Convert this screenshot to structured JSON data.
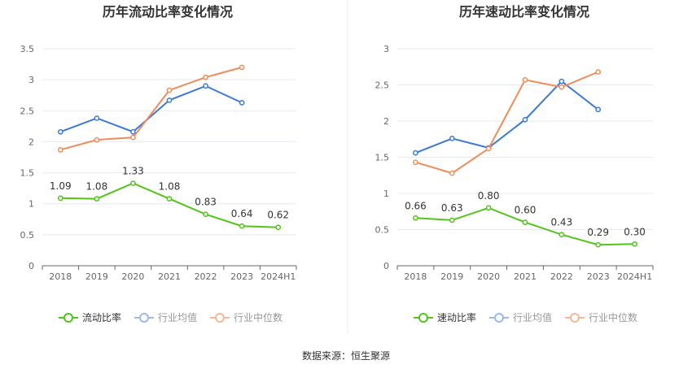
{
  "colors": {
    "primary": "#52c41a",
    "avg": "#3b78d8",
    "median": "#f08c5a",
    "avg_legend": "#9db8ea",
    "median_legend": "#f5b899",
    "grid": "#e6e9f0",
    "axis": "#666666"
  },
  "source": "数据来源：恒生聚源",
  "chart_data": [
    {
      "type": "line",
      "title": "历年流动比率变化情况",
      "categories": [
        "2018",
        "2019",
        "2020",
        "2021",
        "2022",
        "2023",
        "2024H1"
      ],
      "ylim": [
        0,
        3.5
      ],
      "yticks": [
        "0",
        "0.5",
        "1",
        "1.5",
        "2",
        "2.5",
        "3",
        "3.5"
      ],
      "grid": true,
      "legend_position": "bottom",
      "series": [
        {
          "name": "流动比率",
          "role": "primary",
          "values": [
            1.09,
            1.08,
            1.33,
            1.08,
            0.83,
            0.64,
            0.62
          ],
          "labels": [
            "1.09",
            "1.08",
            "1.33",
            "1.08",
            "0.83",
            "0.64",
            "0.62"
          ]
        },
        {
          "name": "行业均值",
          "role": "avg",
          "values": [
            2.16,
            2.38,
            2.16,
            2.67,
            2.9,
            2.63,
            null
          ]
        },
        {
          "name": "行业中位数",
          "role": "median",
          "values": [
            1.87,
            2.03,
            2.07,
            2.83,
            3.04,
            3.2,
            null
          ]
        }
      ]
    },
    {
      "type": "line",
      "title": "历年速动比率变化情况",
      "categories": [
        "2018",
        "2019",
        "2020",
        "2021",
        "2022",
        "2023",
        "2024H1"
      ],
      "ylim": [
        0,
        3
      ],
      "yticks": [
        "0",
        "0.5",
        "1",
        "1.5",
        "2",
        "2.5",
        "3"
      ],
      "grid": true,
      "legend_position": "bottom",
      "series": [
        {
          "name": "速动比率",
          "role": "primary",
          "values": [
            0.66,
            0.63,
            0.8,
            0.6,
            0.43,
            0.29,
            0.3
          ],
          "labels": [
            "0.66",
            "0.63",
            "0.80",
            "0.60",
            "0.43",
            "0.29",
            "0.30"
          ]
        },
        {
          "name": "行业均值",
          "role": "avg",
          "values": [
            1.56,
            1.76,
            1.63,
            2.02,
            2.55,
            2.16,
            null
          ]
        },
        {
          "name": "行业中位数",
          "role": "median",
          "values": [
            1.43,
            1.28,
            1.62,
            2.57,
            2.47,
            2.68,
            null
          ]
        }
      ]
    }
  ]
}
